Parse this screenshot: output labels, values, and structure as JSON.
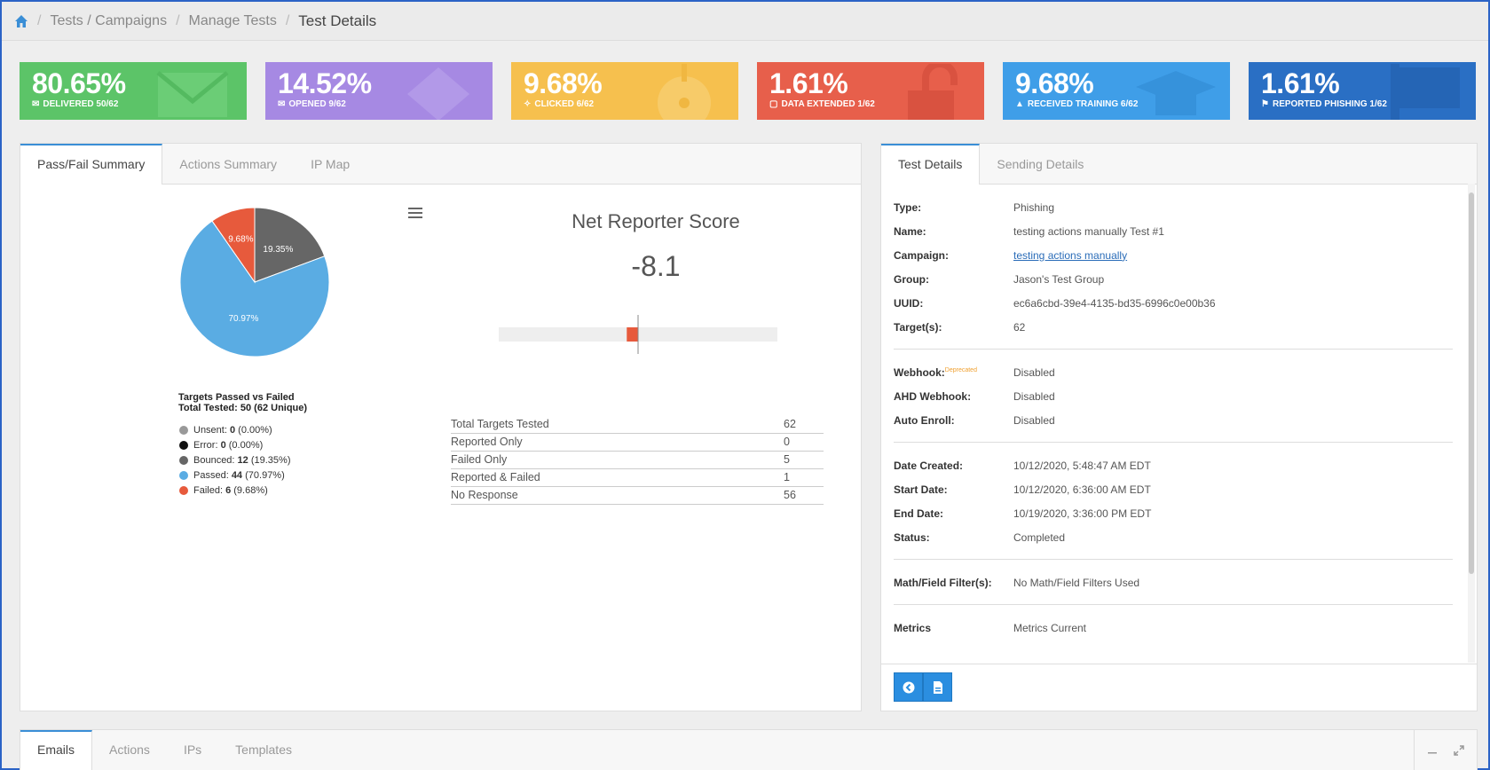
{
  "breadcrumb": {
    "items": [
      "Tests / Campaigns",
      "Manage Tests"
    ],
    "current": "Test Details"
  },
  "kpis": [
    {
      "value": "80.65%",
      "label": "DELIVERED 50/62",
      "color": "#5cc468",
      "icon": "envelope-icon"
    },
    {
      "value": "14.52%",
      "label": "OPENED 9/62",
      "color": "#a689e3",
      "icon": "envelope-open-icon"
    },
    {
      "value": "9.68%",
      "label": "CLICKED 6/62",
      "color": "#f6c04e",
      "icon": "crosshair-icon"
    },
    {
      "value": "1.61%",
      "label": "DATA EXTENDED 1/62",
      "color": "#e75f4b",
      "icon": "unlock-icon"
    },
    {
      "value": "9.68%",
      "label": "RECEIVED TRAINING 6/62",
      "color": "#3f9ee8",
      "icon": "graduation-cap-icon"
    },
    {
      "value": "1.61%",
      "label": "REPORTED PHISHING 1/62",
      "color": "#2a6fc4",
      "icon": "flag-icon"
    }
  ],
  "left_tabs": [
    "Pass/Fail Summary",
    "Actions Summary",
    "IP Map"
  ],
  "chart_data": {
    "type": "pie",
    "title": "Targets Passed vs Failed",
    "subtitle": "Total Tested: 50 (62 Unique)",
    "slices": [
      {
        "name": "Unsent",
        "count": "0",
        "pct": "(0.00%)",
        "value": 0,
        "color": "#999999"
      },
      {
        "name": "Error",
        "count": "0",
        "pct": "(0.00%)",
        "value": 0,
        "color": "#111111"
      },
      {
        "name": "Bounced",
        "count": "12",
        "pct": "(19.35%)",
        "value": 19.35,
        "color": "#666666",
        "label": "19.35%"
      },
      {
        "name": "Passed",
        "count": "44",
        "pct": "(70.97%)",
        "value": 70.97,
        "color": "#5aace3",
        "label": "70.97%"
      },
      {
        "name": "Failed",
        "count": "6",
        "pct": "(9.68%)",
        "value": 9.68,
        "color": "#e75a3c",
        "label": "9.68%"
      }
    ],
    "legend_position": "bottom"
  },
  "nrs": {
    "title": "Net Reporter Score",
    "value": "-8.1",
    "score": -8.1,
    "range": [
      -100,
      100
    ],
    "rows": [
      {
        "label": "Total Targets Tested",
        "value": "62"
      },
      {
        "label": "Reported Only",
        "value": "0"
      },
      {
        "label": "Failed Only",
        "value": "5"
      },
      {
        "label": "Reported & Failed",
        "value": "1"
      },
      {
        "label": "No Response",
        "value": "56"
      }
    ]
  },
  "right_tabs": [
    "Test Details",
    "Sending Details"
  ],
  "details": {
    "type": {
      "k": "Type:",
      "v": "Phishing"
    },
    "name": {
      "k": "Name:",
      "v": "testing actions manually Test #1"
    },
    "campaign": {
      "k": "Campaign:",
      "v": "testing actions manually"
    },
    "group": {
      "k": "Group:",
      "v": "Jason's Test Group"
    },
    "uuid": {
      "k": "UUID:",
      "v": "ec6a6cbd-39e4-4135-bd35-6996c0e00b36"
    },
    "targets": {
      "k": "Target(s):",
      "v": "62"
    },
    "webhook": {
      "k": "Webhook:",
      "badge": "Deprecated",
      "v": "Disabled"
    },
    "ahd": {
      "k": "AHD Webhook:",
      "v": "Disabled"
    },
    "autoenroll": {
      "k": "Auto Enroll:",
      "v": "Disabled"
    },
    "created": {
      "k": "Date Created:",
      "v": "10/12/2020, 5:48:47 AM EDT"
    },
    "start": {
      "k": "Start Date:",
      "v": "10/12/2020, 6:36:00 AM EDT"
    },
    "end": {
      "k": "End Date:",
      "v": "10/19/2020, 3:36:00 PM EDT"
    },
    "status": {
      "k": "Status:",
      "v": "Completed"
    },
    "filters": {
      "k": "Math/Field Filter(s):",
      "v": "No Math/Field Filters Used"
    },
    "metrics": {
      "k": "Metrics",
      "v": "Metrics Current"
    }
  },
  "bottom_tabs": [
    "Emails",
    "Actions",
    "IPs",
    "Templates"
  ],
  "colors": {
    "accent": "#3a8ed6",
    "button": "#2b8ee0"
  }
}
